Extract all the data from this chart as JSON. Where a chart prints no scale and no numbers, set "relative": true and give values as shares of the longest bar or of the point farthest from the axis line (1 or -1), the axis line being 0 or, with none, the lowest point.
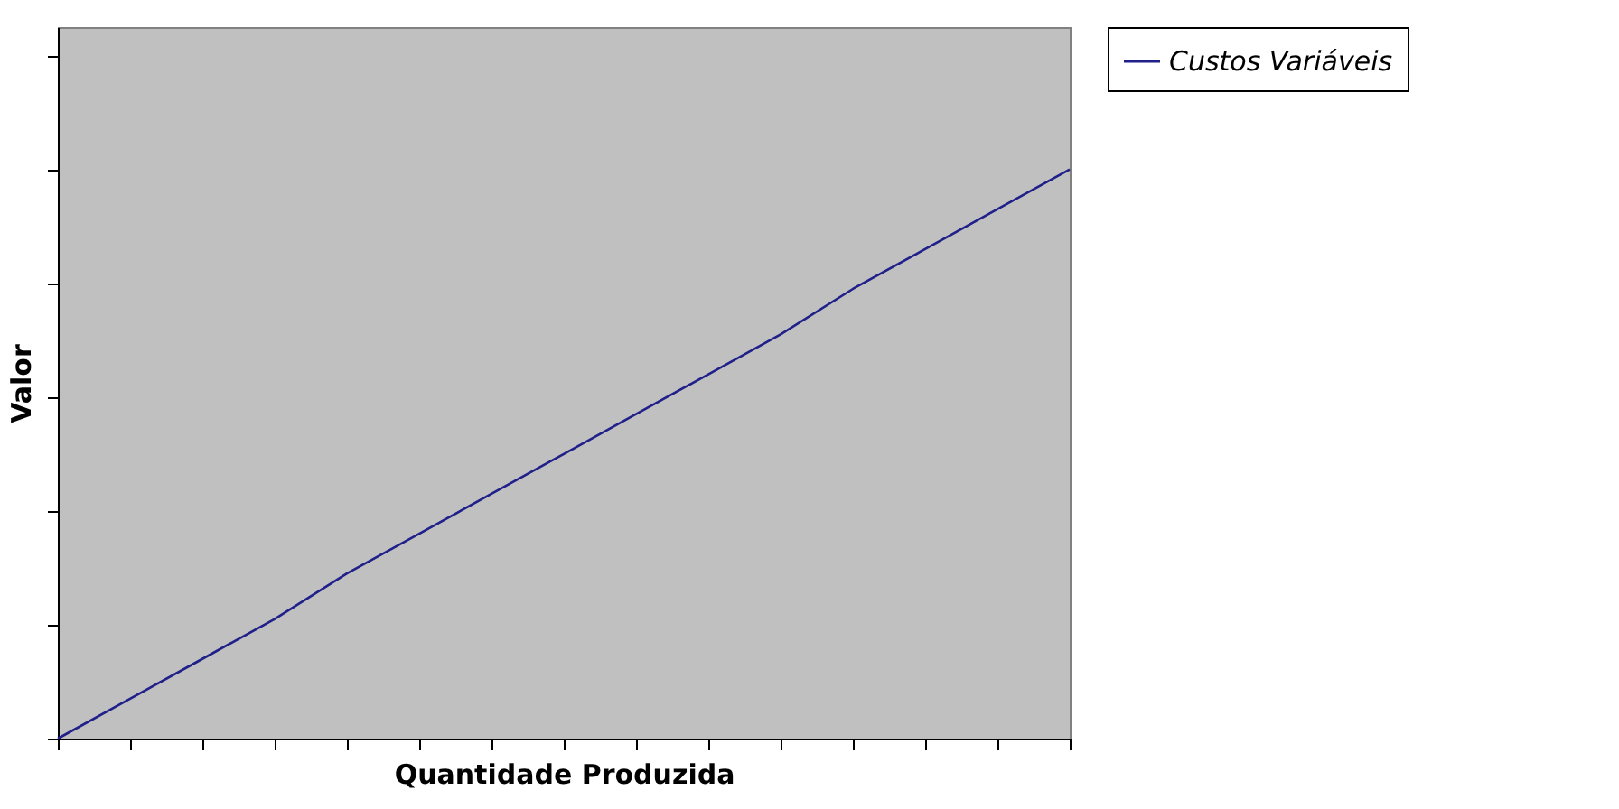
{
  "chart_data": {
    "type": "line",
    "relative": true,
    "xlabel": "Quantidade Produzida",
    "ylabel": "Valor",
    "categories": [
      null,
      null,
      null,
      null,
      null,
      null,
      null,
      null,
      null,
      null,
      null,
      null,
      null,
      null,
      null
    ],
    "series": [
      {
        "name": "Custos Variáveis",
        "color": "#20208a",
        "values": [
          0,
          0.07,
          0.14,
          0.21,
          0.29,
          0.36,
          0.43,
          0.5,
          0.57,
          0.64,
          0.71,
          0.79,
          0.86,
          0.93,
          1
        ]
      }
    ],
    "legend": "right",
    "grid": false
  }
}
